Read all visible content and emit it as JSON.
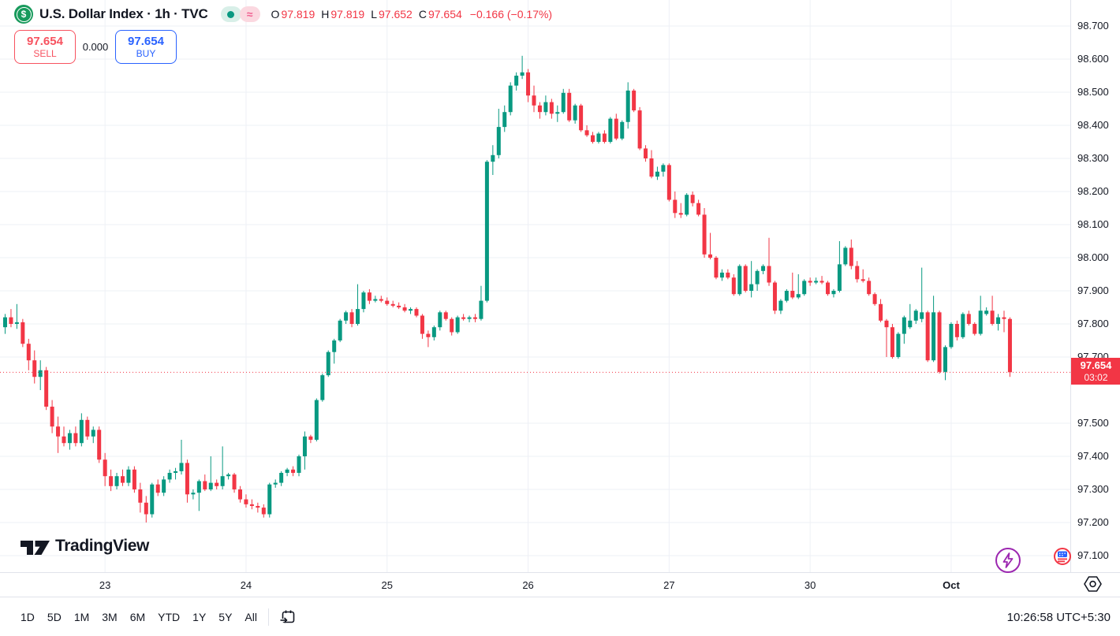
{
  "header": {
    "title": "U.S. Dollar Index · 1h · TVC",
    "market_status": {
      "dot_icon": "market-status-dot",
      "approx_symbol": "≈"
    },
    "ohlc": {
      "o_label": "O",
      "o": "97.819",
      "h_label": "H",
      "h": "97.819",
      "l_label": "L",
      "l": "97.652",
      "c_label": "C",
      "c": "97.654",
      "change": "−0.166 (−0.17%)"
    }
  },
  "trade": {
    "sell_price": "97.654",
    "sell_label": "SELL",
    "spread": "0.000",
    "buy_price": "97.654",
    "buy_label": "BUY"
  },
  "price_scale": {
    "last_price": "97.654",
    "countdown": "03:02"
  },
  "toolbar": {
    "ranges": [
      "1D",
      "5D",
      "1M",
      "3M",
      "6M",
      "YTD",
      "1Y",
      "5Y",
      "All"
    ],
    "clock": "10:26:58 UTC+5:30"
  },
  "logo": {
    "text": "TradingView"
  },
  "colors": {
    "up": "#089981",
    "down": "#f23645",
    "accent_buy": "#2962ff",
    "accent_sell": "#f7525f",
    "grid": "#eef0f6",
    "border": "#e0e3eb",
    "text": "#131722",
    "last_price_bg": "#f23645",
    "purple": "#9c27b0"
  },
  "chart_data": {
    "type": "candlestick",
    "title": "U.S. Dollar Index, 1h, TVC",
    "ylim": [
      97.1,
      98.7
    ],
    "grid": true,
    "legend_position": "none",
    "price_ticks": [
      "98.700",
      "98.600",
      "98.500",
      "98.400",
      "98.300",
      "98.200",
      "98.100",
      "98.000",
      "97.900",
      "97.800",
      "97.700",
      "97.500",
      "97.400",
      "97.300",
      "97.200",
      "97.100"
    ],
    "time_ticks": [
      {
        "i": 17,
        "label": "23"
      },
      {
        "i": 41,
        "label": "24"
      },
      {
        "i": 65,
        "label": "25"
      },
      {
        "i": 89,
        "label": "26"
      },
      {
        "i": 113,
        "label": "27"
      },
      {
        "i": 137,
        "label": "30"
      },
      {
        "i": 161,
        "label": "Oct",
        "bold": true
      }
    ],
    "last_price": 97.654,
    "countdown": "03:02",
    "candles": [
      [
        97.79,
        97.83,
        97.77,
        97.82
      ],
      [
        97.82,
        97.845,
        97.79,
        97.8
      ],
      [
        97.8,
        97.86,
        97.785,
        97.805
      ],
      [
        97.805,
        97.815,
        97.73,
        97.74
      ],
      [
        97.74,
        97.755,
        97.66,
        97.69
      ],
      [
        97.69,
        97.72,
        97.62,
        97.64
      ],
      [
        97.64,
        97.69,
        97.6,
        97.66
      ],
      [
        97.66,
        97.67,
        97.54,
        97.55
      ],
      [
        97.55,
        97.57,
        97.47,
        97.49
      ],
      [
        97.49,
        97.52,
        97.41,
        97.46
      ],
      [
        97.46,
        97.49,
        97.43,
        97.44
      ],
      [
        97.44,
        97.48,
        97.42,
        97.47
      ],
      [
        97.47,
        97.49,
        97.43,
        97.44
      ],
      [
        97.44,
        97.53,
        97.43,
        97.51
      ],
      [
        97.51,
        97.52,
        97.45,
        97.46
      ],
      [
        97.46,
        97.49,
        97.44,
        97.48
      ],
      [
        97.48,
        97.49,
        97.38,
        97.39
      ],
      [
        97.39,
        97.41,
        97.31,
        97.34
      ],
      [
        97.34,
        97.36,
        97.295,
        97.31
      ],
      [
        97.31,
        97.35,
        97.3,
        97.34
      ],
      [
        97.34,
        97.36,
        97.31,
        97.32
      ],
      [
        97.32,
        97.37,
        97.31,
        97.36
      ],
      [
        97.36,
        97.37,
        97.29,
        97.3
      ],
      [
        97.3,
        97.32,
        97.23,
        97.26
      ],
      [
        97.26,
        97.28,
        97.2,
        97.225
      ],
      [
        97.225,
        97.32,
        97.215,
        97.315
      ],
      [
        97.315,
        97.33,
        97.28,
        97.29
      ],
      [
        97.29,
        97.34,
        97.28,
        97.33
      ],
      [
        97.33,
        97.36,
        97.32,
        97.35
      ],
      [
        97.35,
        97.365,
        97.33,
        97.355
      ],
      [
        97.355,
        97.45,
        97.345,
        97.38
      ],
      [
        97.38,
        97.39,
        97.26,
        97.285
      ],
      [
        97.285,
        97.3,
        97.27,
        97.29
      ],
      [
        97.29,
        97.33,
        97.235,
        97.325
      ],
      [
        97.325,
        97.345,
        97.295,
        97.3
      ],
      [
        97.3,
        97.4,
        97.295,
        97.32
      ],
      [
        97.32,
        97.33,
        97.3,
        97.31
      ],
      [
        97.31,
        97.43,
        97.3,
        97.34
      ],
      [
        97.34,
        97.35,
        97.33,
        97.345
      ],
      [
        97.345,
        97.35,
        97.29,
        97.3
      ],
      [
        97.3,
        97.31,
        97.26,
        97.27
      ],
      [
        97.27,
        97.285,
        97.245,
        97.255
      ],
      [
        97.255,
        97.27,
        97.24,
        97.25
      ],
      [
        97.25,
        97.26,
        97.23,
        97.245
      ],
      [
        97.245,
        97.255,
        97.215,
        97.225
      ],
      [
        97.225,
        97.32,
        97.215,
        97.315
      ],
      [
        97.315,
        97.33,
        97.305,
        97.32
      ],
      [
        97.32,
        97.355,
        97.31,
        97.35
      ],
      [
        97.35,
        97.365,
        97.34,
        97.36
      ],
      [
        97.36,
        97.37,
        97.34,
        97.35
      ],
      [
        97.35,
        97.405,
        97.34,
        97.4
      ],
      [
        97.4,
        97.475,
        97.36,
        97.46
      ],
      [
        97.46,
        97.465,
        97.44,
        97.45
      ],
      [
        97.45,
        97.575,
        97.445,
        97.57
      ],
      [
        97.57,
        97.65,
        97.565,
        97.645
      ],
      [
        97.645,
        97.72,
        97.64,
        97.715
      ],
      [
        97.715,
        97.755,
        97.68,
        97.75
      ],
      [
        97.75,
        97.815,
        97.745,
        97.81
      ],
      [
        97.81,
        97.84,
        97.8,
        97.835
      ],
      [
        97.835,
        97.845,
        97.79,
        97.8
      ],
      [
        97.8,
        97.92,
        97.795,
        97.845
      ],
      [
        97.845,
        97.9,
        97.835,
        97.895
      ],
      [
        97.895,
        97.905,
        97.86,
        97.87
      ],
      [
        97.87,
        97.885,
        97.865,
        97.875
      ],
      [
        97.875,
        97.885,
        97.865,
        97.87
      ],
      [
        97.87,
        97.88,
        97.855,
        97.86
      ],
      [
        97.86,
        97.87,
        97.85,
        97.855
      ],
      [
        97.855,
        97.865,
        97.845,
        97.85
      ],
      [
        97.85,
        97.86,
        97.835,
        97.84
      ],
      [
        97.84,
        97.85,
        97.83,
        97.845
      ],
      [
        97.845,
        97.85,
        97.82,
        97.825
      ],
      [
        97.825,
        97.83,
        97.755,
        97.77
      ],
      [
        97.77,
        97.78,
        97.73,
        97.76
      ],
      [
        97.76,
        97.795,
        97.75,
        97.79
      ],
      [
        97.79,
        97.84,
        97.78,
        97.835
      ],
      [
        97.835,
        97.84,
        97.81,
        97.815
      ],
      [
        97.815,
        97.82,
        97.765,
        97.775
      ],
      [
        97.775,
        97.825,
        97.77,
        97.82
      ],
      [
        97.82,
        97.83,
        97.81,
        97.815
      ],
      [
        97.815,
        97.825,
        97.805,
        97.82
      ],
      [
        97.82,
        97.83,
        97.805,
        97.815
      ],
      [
        97.815,
        97.915,
        97.81,
        97.87
      ],
      [
        97.87,
        98.295,
        97.865,
        98.29
      ],
      [
        98.29,
        98.34,
        98.25,
        98.31
      ],
      [
        98.31,
        98.45,
        98.3,
        98.395
      ],
      [
        98.395,
        98.46,
        98.38,
        98.44
      ],
      [
        98.44,
        98.53,
        98.43,
        98.52
      ],
      [
        98.52,
        98.56,
        98.505,
        98.55
      ],
      [
        98.55,
        98.61,
        98.54,
        98.56
      ],
      [
        98.56,
        98.57,
        98.47,
        98.49
      ],
      [
        98.49,
        98.52,
        98.44,
        98.46
      ],
      [
        98.46,
        98.47,
        98.42,
        98.44
      ],
      [
        98.44,
        98.49,
        98.43,
        98.47
      ],
      [
        98.47,
        98.48,
        98.42,
        98.435
      ],
      [
        98.435,
        98.46,
        98.41,
        98.44
      ],
      [
        98.44,
        98.51,
        98.435,
        98.498
      ],
      [
        98.498,
        98.51,
        98.41,
        98.415
      ],
      [
        98.415,
        98.465,
        98.405,
        98.46
      ],
      [
        98.46,
        98.465,
        98.38,
        98.385
      ],
      [
        98.385,
        98.4,
        98.365,
        98.37
      ],
      [
        98.37,
        98.38,
        98.345,
        98.35
      ],
      [
        98.35,
        98.38,
        98.345,
        98.375
      ],
      [
        98.375,
        98.385,
        98.345,
        98.35
      ],
      [
        98.35,
        98.425,
        98.345,
        98.42
      ],
      [
        98.42,
        98.435,
        98.355,
        98.36
      ],
      [
        98.36,
        98.415,
        98.355,
        98.41
      ],
      [
        98.41,
        98.53,
        98.39,
        98.505
      ],
      [
        98.505,
        98.51,
        98.44,
        98.445
      ],
      [
        98.445,
        98.455,
        98.325,
        98.33
      ],
      [
        98.33,
        98.34,
        98.29,
        98.3
      ],
      [
        98.3,
        98.325,
        98.24,
        98.245
      ],
      [
        98.245,
        98.275,
        98.235,
        98.26
      ],
      [
        98.26,
        98.285,
        98.245,
        98.28
      ],
      [
        98.28,
        98.285,
        98.17,
        98.175
      ],
      [
        98.175,
        98.2,
        98.12,
        98.135
      ],
      [
        98.135,
        98.165,
        98.12,
        98.13
      ],
      [
        98.13,
        98.195,
        98.125,
        98.19
      ],
      [
        98.19,
        98.2,
        98.155,
        98.165
      ],
      [
        98.165,
        98.175,
        98.125,
        98.13
      ],
      [
        98.13,
        98.15,
        98.0,
        98.01
      ],
      [
        98.01,
        98.075,
        97.995,
        98.0
      ],
      [
        98.0,
        98.005,
        97.935,
        97.94
      ],
      [
        97.94,
        97.965,
        97.93,
        97.955
      ],
      [
        97.955,
        97.965,
        97.935,
        97.94
      ],
      [
        97.94,
        97.95,
        97.885,
        97.89
      ],
      [
        97.89,
        97.98,
        97.885,
        97.975
      ],
      [
        97.975,
        97.98,
        97.895,
        97.9
      ],
      [
        97.9,
        97.99,
        97.88,
        97.92
      ],
      [
        97.92,
        97.965,
        97.9,
        97.96
      ],
      [
        97.96,
        97.98,
        97.95,
        97.975
      ],
      [
        97.975,
        98.06,
        97.915,
        97.925
      ],
      [
        97.925,
        97.93,
        97.83,
        97.84
      ],
      [
        97.84,
        97.875,
        97.83,
        97.87
      ],
      [
        97.87,
        97.905,
        97.865,
        97.9
      ],
      [
        97.9,
        97.955,
        97.875,
        97.88
      ],
      [
        97.88,
        97.95,
        97.875,
        97.89
      ],
      [
        97.89,
        97.935,
        97.885,
        97.93
      ],
      [
        97.93,
        97.94,
        97.915,
        97.925
      ],
      [
        97.925,
        97.94,
        97.92,
        97.93
      ],
      [
        97.93,
        97.945,
        97.92,
        97.925
      ],
      [
        97.925,
        97.93,
        97.885,
        97.89
      ],
      [
        97.89,
        97.905,
        97.88,
        97.9
      ],
      [
        97.9,
        98.05,
        97.895,
        97.98
      ],
      [
        97.98,
        98.035,
        97.975,
        98.03
      ],
      [
        98.03,
        98.055,
        97.965,
        97.975
      ],
      [
        97.975,
        97.99,
        97.925,
        97.935
      ],
      [
        97.935,
        97.965,
        97.925,
        97.93
      ],
      [
        97.93,
        97.94,
        97.885,
        97.89
      ],
      [
        97.89,
        97.895,
        97.855,
        97.86
      ],
      [
        97.86,
        97.875,
        97.805,
        97.81
      ],
      [
        97.81,
        97.815,
        97.7,
        97.79
      ],
      [
        97.79,
        97.8,
        97.695,
        97.7
      ],
      [
        97.7,
        97.775,
        97.695,
        97.77
      ],
      [
        97.77,
        97.825,
        97.74,
        97.82
      ],
      [
        97.79,
        97.86,
        97.785,
        97.81
      ],
      [
        97.81,
        97.845,
        97.8,
        97.84
      ],
      [
        97.815,
        97.97,
        97.805,
        97.835
      ],
      [
        97.835,
        97.84,
        97.685,
        97.69
      ],
      [
        97.69,
        97.885,
        97.685,
        97.835
      ],
      [
        97.835,
        97.84,
        97.65,
        97.655
      ],
      [
        97.655,
        97.735,
        97.63,
        97.73
      ],
      [
        97.73,
        97.805,
        97.725,
        97.8
      ],
      [
        97.8,
        97.81,
        97.75,
        97.76
      ],
      [
        97.76,
        97.835,
        97.755,
        97.83
      ],
      [
        97.83,
        97.84,
        97.795,
        97.8
      ],
      [
        97.8,
        97.805,
        97.765,
        97.77
      ],
      [
        97.77,
        97.885,
        97.765,
        97.84
      ],
      [
        97.83,
        97.85,
        97.825,
        97.84
      ],
      [
        97.84,
        97.885,
        97.795,
        97.8
      ],
      [
        97.8,
        97.83,
        97.78,
        97.82
      ],
      [
        97.82,
        97.84,
        97.775,
        97.815
      ],
      [
        97.815,
        97.82,
        97.64,
        97.654
      ]
    ]
  }
}
